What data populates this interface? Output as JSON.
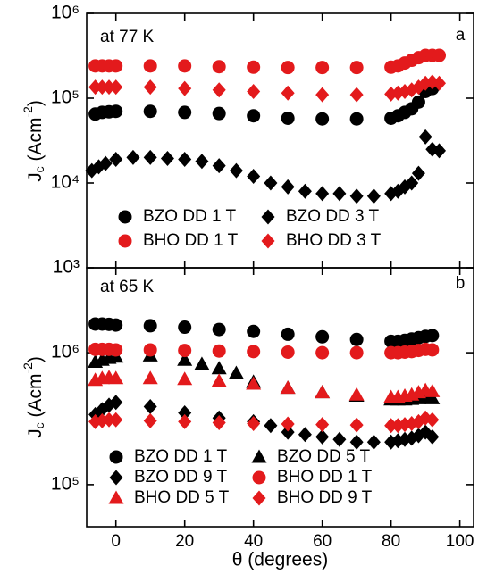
{
  "chart_data": [
    {
      "type": "scatter",
      "annotation": "at 77 K",
      "panel_label": "a",
      "ylabel_parts": [
        "J",
        "c",
        " (Acm",
        "-2",
        ")"
      ],
      "log_y": true,
      "xlim": [
        -8.5,
        104
      ],
      "xticks": [
        0,
        20,
        40,
        60,
        80,
        100
      ],
      "ylim": [
        1000,
        1000000
      ],
      "yticks": [
        {
          "value": 1000,
          "label": "10³"
        },
        {
          "value": 10000,
          "label": "10⁴"
        },
        {
          "value": 100000,
          "label": "10⁵"
        },
        {
          "value": 1000000,
          "label": "10⁶"
        }
      ],
      "series": [
        {
          "name": "BZO DD 1 T",
          "color": "#000000",
          "marker": "circle",
          "x": [
            -6,
            -4,
            -2,
            0,
            10,
            20,
            30,
            40,
            50,
            60,
            70,
            80,
            82,
            84,
            86,
            88,
            90,
            92
          ],
          "values": [
            65000,
            68000,
            69000,
            70000,
            70000,
            68000,
            66000,
            62000,
            58000,
            57000,
            57000,
            58000,
            62000,
            68000,
            75000,
            90000,
            120000,
            130000
          ]
        },
        {
          "name": "BZO DD 3 T",
          "color": "#000000",
          "marker": "diamond",
          "x": [
            -7,
            -5,
            -3,
            0,
            5,
            10,
            15,
            20,
            25,
            30,
            35,
            40,
            45,
            50,
            55,
            60,
            65,
            70,
            75,
            80,
            82,
            84,
            86,
            88,
            90,
            92,
            94
          ],
          "values": [
            14000,
            15500,
            17000,
            19000,
            20000,
            20000,
            19500,
            19000,
            18000,
            16000,
            14000,
            12000,
            10000,
            9000,
            8000,
            7500,
            7500,
            7000,
            7000,
            7500,
            8000,
            9000,
            10000,
            13000,
            35000,
            25000,
            24000
          ]
        },
        {
          "name": "BHO DD 1 T",
          "color": "#e31a1c",
          "marker": "circle",
          "x": [
            -6,
            -4,
            -2,
            0,
            10,
            20,
            30,
            40,
            50,
            60,
            70,
            80,
            82,
            84,
            86,
            88,
            90,
            92,
            94
          ],
          "values": [
            240000,
            240000,
            240000,
            240000,
            240000,
            240000,
            235000,
            232000,
            230000,
            230000,
            230000,
            232000,
            240000,
            260000,
            280000,
            300000,
            320000,
            320000,
            320000
          ]
        },
        {
          "name": "BHO DD 3 T",
          "color": "#e31a1c",
          "marker": "diamond",
          "x": [
            -6,
            -4,
            -2,
            0,
            10,
            20,
            30,
            40,
            50,
            60,
            70,
            80,
            82,
            84,
            86,
            88,
            90,
            92,
            94
          ],
          "values": [
            135000,
            135000,
            135000,
            135000,
            135000,
            130000,
            125000,
            120000,
            115000,
            110000,
            110000,
            112000,
            115000,
            120000,
            125000,
            135000,
            150000,
            155000,
            150000
          ]
        }
      ]
    },
    {
      "type": "scatter",
      "annotation": "at 65 K",
      "panel_label": "b",
      "ylabel_parts": [
        "J",
        "c",
        " (Acm",
        "-2",
        ")"
      ],
      "xlabel": "θ (degrees)",
      "log_y": true,
      "xlim": [
        -8.5,
        104
      ],
      "xticks": [
        0,
        20,
        40,
        60,
        80,
        100
      ],
      "ylim": [
        48000,
        4400000
      ],
      "yticks": [
        {
          "value": 100000,
          "label": "10⁵"
        },
        {
          "value": 1000000,
          "label": "10⁶"
        }
      ],
      "series": [
        {
          "name": "BZO DD 1 T",
          "color": "#000000",
          "marker": "circle",
          "x": [
            -6,
            -4,
            -2,
            0,
            10,
            20,
            30,
            40,
            50,
            60,
            70,
            80,
            82,
            84,
            86,
            88,
            90,
            92
          ],
          "values": [
            1650000,
            1650000,
            1640000,
            1620000,
            1600000,
            1560000,
            1500000,
            1450000,
            1380000,
            1320000,
            1260000,
            1220000,
            1220000,
            1240000,
            1270000,
            1300000,
            1330000,
            1350000
          ]
        },
        {
          "name": "BZO DD 5 T",
          "color": "#000000",
          "marker": "triangle",
          "x": [
            -6,
            -4,
            -2,
            0,
            10,
            20,
            25,
            30,
            35,
            40,
            50,
            60,
            70,
            80,
            82,
            84,
            86,
            88,
            90,
            92
          ],
          "values": [
            850000,
            880000,
            910000,
            930000,
            950000,
            880000,
            820000,
            760000,
            700000,
            600000,
            540000,
            500000,
            470000,
            440000,
            440000,
            440000,
            445000,
            450000,
            460000,
            450000
          ]
        },
        {
          "name": "BZO DD 9 T",
          "color": "#000000",
          "marker": "diamond",
          "x": [
            -6,
            -4,
            -2,
            0,
            10,
            20,
            30,
            40,
            45,
            50,
            55,
            60,
            65,
            70,
            75,
            80,
            82,
            84,
            86,
            88,
            90,
            92
          ],
          "values": [
            340000,
            370000,
            400000,
            420000,
            390000,
            350000,
            320000,
            300000,
            280000,
            250000,
            240000,
            230000,
            220000,
            210000,
            210000,
            210000,
            215000,
            220000,
            225000,
            235000,
            250000,
            230000
          ]
        },
        {
          "name": "BHO DD 1 T",
          "color": "#e31a1c",
          "marker": "circle",
          "x": [
            -6,
            -4,
            -2,
            0,
            10,
            20,
            30,
            40,
            50,
            60,
            70,
            80,
            82,
            84,
            86,
            88,
            90,
            92
          ],
          "values": [
            1060000,
            1060000,
            1060000,
            1050000,
            1050000,
            1040000,
            1030000,
            1020000,
            1010000,
            1000000,
            1000000,
            1000000,
            1000000,
            1010000,
            1020000,
            1040000,
            1060000,
            1050000
          ]
        },
        {
          "name": "BHO DD 5 T",
          "color": "#e31a1c",
          "marker": "triangle",
          "x": [
            -6,
            -4,
            -2,
            0,
            10,
            20,
            30,
            40,
            50,
            60,
            70,
            80,
            82,
            84,
            86,
            88,
            90,
            92
          ],
          "values": [
            620000,
            640000,
            650000,
            640000,
            640000,
            630000,
            610000,
            580000,
            540000,
            500000,
            480000,
            460000,
            460000,
            470000,
            480000,
            500000,
            520000,
            510000
          ]
        },
        {
          "name": "BHO DD 9 T",
          "color": "#e31a1c",
          "marker": "diamond",
          "x": [
            -6,
            -4,
            -2,
            0,
            10,
            20,
            30,
            40,
            50,
            60,
            70,
            80,
            82,
            84,
            86,
            88,
            90,
            92
          ],
          "values": [
            300000,
            305000,
            310000,
            310000,
            305000,
            300000,
            295000,
            290000,
            288000,
            285000,
            283000,
            280000,
            280000,
            285000,
            290000,
            300000,
            320000,
            310000
          ]
        }
      ]
    }
  ]
}
